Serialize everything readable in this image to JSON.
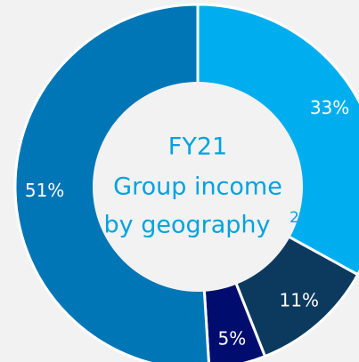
{
  "chart_data": {
    "type": "pie",
    "center_text": [
      "FY21",
      "Group income",
      "by geography"
    ],
    "center_superscript": "2",
    "categories": [
      null,
      null,
      null,
      null
    ],
    "values": [
      33,
      11,
      5,
      51
    ],
    "value_labels": [
      "33%",
      "11%",
      "5%",
      "51%"
    ],
    "colors": [
      "#00aeef",
      "#0b3a5e",
      "#000d6e",
      "#0076b6"
    ]
  }
}
